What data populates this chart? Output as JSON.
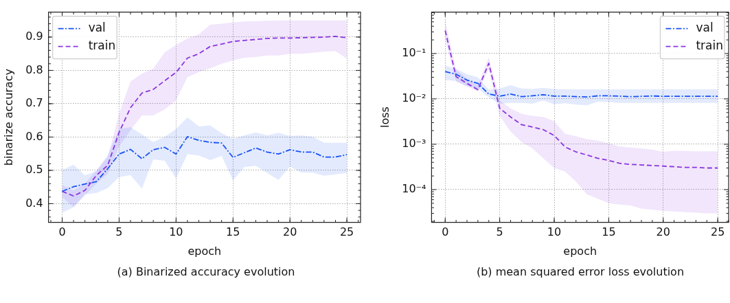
{
  "chart_data": [
    {
      "type": "line",
      "title": "(a)  Binarized accuracy evolution",
      "xlabel": "epoch",
      "ylabel": "binarize accuracy",
      "grid": true,
      "legend": "top left",
      "x": [
        0,
        1,
        2,
        3,
        4,
        5,
        6,
        7,
        8,
        9,
        10,
        11,
        12,
        13,
        14,
        15,
        16,
        17,
        18,
        19,
        20,
        21,
        22,
        23,
        24,
        25
      ],
      "xlim": [
        -1.2,
        26.2
      ],
      "ylim": [
        0.344,
        0.975
      ],
      "xticks": [
        0,
        5,
        10,
        15,
        20,
        25
      ],
      "yticks": [
        0.4,
        0.5,
        0.6,
        0.7,
        0.8,
        0.9
      ],
      "series": [
        {
          "name": "val",
          "color": "#1652f5",
          "line_style": "dashdot",
          "values": [
            0.437,
            0.451,
            0.459,
            0.466,
            0.505,
            0.549,
            0.563,
            0.535,
            0.562,
            0.569,
            0.549,
            0.601,
            0.59,
            0.584,
            0.582,
            0.539,
            0.553,
            0.567,
            0.555,
            0.549,
            0.562,
            0.555,
            0.555,
            0.54,
            0.54,
            0.547
          ],
          "upper": [
            0.501,
            0.517,
            0.485,
            0.498,
            0.546,
            0.624,
            0.63,
            0.608,
            0.585,
            0.601,
            0.624,
            0.659,
            0.632,
            0.635,
            0.611,
            0.595,
            0.605,
            0.614,
            0.605,
            0.613,
            0.603,
            0.605,
            0.601,
            0.583,
            0.583,
            0.583
          ],
          "lower": [
            0.373,
            0.389,
            0.428,
            0.432,
            0.447,
            0.48,
            0.486,
            0.445,
            0.533,
            0.529,
            0.476,
            0.549,
            0.545,
            0.531,
            0.543,
            0.47,
            0.51,
            0.514,
            0.492,
            0.471,
            0.512,
            0.493,
            0.493,
            0.484,
            0.488,
            0.492
          ]
        },
        {
          "name": "train",
          "color": "#8a35e0",
          "line_style": "dashed",
          "values": [
            0.437,
            0.423,
            0.44,
            0.485,
            0.515,
            0.614,
            0.688,
            0.732,
            0.743,
            0.769,
            0.794,
            0.837,
            0.85,
            0.872,
            0.879,
            0.887,
            0.89,
            0.893,
            0.896,
            0.897,
            0.897,
            0.898,
            0.899,
            0.9,
            0.902,
            0.898
          ],
          "upper": [
            0.455,
            0.44,
            0.46,
            0.5,
            0.54,
            0.67,
            0.767,
            0.79,
            0.805,
            0.854,
            0.876,
            0.896,
            0.908,
            0.937,
            0.94,
            0.944,
            0.947,
            0.948,
            0.949,
            0.95,
            0.95,
            0.95,
            0.95,
            0.95,
            0.95,
            0.95
          ],
          "lower": [
            0.42,
            0.39,
            0.425,
            0.46,
            0.49,
            0.572,
            0.62,
            0.665,
            0.665,
            0.683,
            0.71,
            0.78,
            0.795,
            0.806,
            0.82,
            0.83,
            0.838,
            0.84,
            0.845,
            0.845,
            0.85,
            0.85,
            0.853,
            0.856,
            0.858,
            0.835
          ]
        }
      ]
    },
    {
      "type": "line",
      "title": "(b)  mean squared error loss evolution",
      "xlabel": "epoch",
      "ylabel": "loss",
      "grid": true,
      "legend": "top right",
      "log": "y",
      "x": [
        0,
        1,
        2,
        3,
        4,
        5,
        6,
        7,
        8,
        9,
        10,
        11,
        12,
        13,
        14,
        15,
        16,
        17,
        18,
        19,
        20,
        21,
        22,
        23,
        24,
        25
      ],
      "xlim": [
        -1.25,
        26
      ],
      "ylim": [
        1.9e-05,
        0.82
      ],
      "xticks": [
        0,
        5,
        10,
        15,
        20,
        25
      ],
      "yticks": [
        {
          "value": 0.0001,
          "label": "10⁻⁴"
        },
        {
          "value": 0.001,
          "label": "10⁻³"
        },
        {
          "value": 0.01,
          "label": "10⁻²"
        },
        {
          "value": 0.1,
          "label": "10⁻¹"
        }
      ],
      "series": [
        {
          "name": "val",
          "color": "#1652f5",
          "line_style": "dashdot",
          "values": [
            0.04,
            0.035,
            0.026,
            0.022,
            0.0128,
            0.0115,
            0.0128,
            0.0112,
            0.0117,
            0.0124,
            0.0115,
            0.0115,
            0.0112,
            0.011,
            0.0117,
            0.0117,
            0.0115,
            0.0112,
            0.0114,
            0.0116,
            0.0114,
            0.0114,
            0.0114,
            0.0114,
            0.0114,
            0.0114
          ],
          "upper": [
            0.054,
            0.046,
            0.035,
            0.03,
            0.016,
            0.017,
            0.02,
            0.017,
            0.0165,
            0.0175,
            0.0165,
            0.0163,
            0.0163,
            0.0163,
            0.0163,
            0.0163,
            0.0163,
            0.0163,
            0.0163,
            0.0163,
            0.0163,
            0.0163,
            0.0163,
            0.0163,
            0.0163,
            0.0163
          ],
          "lower": [
            0.026,
            0.025,
            0.019,
            0.017,
            0.0108,
            0.0078,
            0.0082,
            0.0082,
            0.0078,
            0.0092,
            0.0076,
            0.008,
            0.0075,
            0.0072,
            0.0087,
            0.0085,
            0.0082,
            0.0082,
            0.0082,
            0.0082,
            0.0082,
            0.0082,
            0.0082,
            0.0082,
            0.0082,
            0.0082
          ]
        },
        {
          "name": "train",
          "color": "#8a35e0",
          "line_style": "dashed",
          "values": [
            0.32,
            0.031,
            0.022,
            0.016,
            0.061,
            0.0062,
            0.004,
            0.0027,
            0.0024,
            0.0021,
            0.00156,
            0.00087,
            0.00068,
            0.00058,
            0.00049,
            0.00044,
            0.00038,
            0.00036,
            0.00035,
            0.00034,
            0.00033,
            0.00032,
            0.00031,
            0.00031,
            0.0003,
            0.0003
          ],
          "upper": [
            0.53,
            0.044,
            0.028,
            0.02,
            0.083,
            0.0092,
            0.0062,
            0.0047,
            0.0042,
            0.004,
            0.0032,
            0.0017,
            0.0015,
            0.0013,
            0.0012,
            0.00106,
            0.00089,
            0.00085,
            0.00081,
            0.00076,
            0.00068,
            0.00072,
            0.00071,
            0.0007,
            0.0007,
            0.0007
          ],
          "lower": [
            0.205,
            0.024,
            0.019,
            0.0144,
            0.044,
            0.0042,
            0.0019,
            0.00112,
            0.00081,
            0.00049,
            0.0003,
            0.00025,
            0.00015,
            7.8e-05,
            6.3e-05,
            5e-05,
            4.7e-05,
            4.5e-05,
            3.8e-05,
            3.6e-05,
            3.4e-05,
            3.3e-05,
            3.2e-05,
            3.1e-05,
            3e-05,
            3e-05
          ]
        }
      ]
    }
  ]
}
